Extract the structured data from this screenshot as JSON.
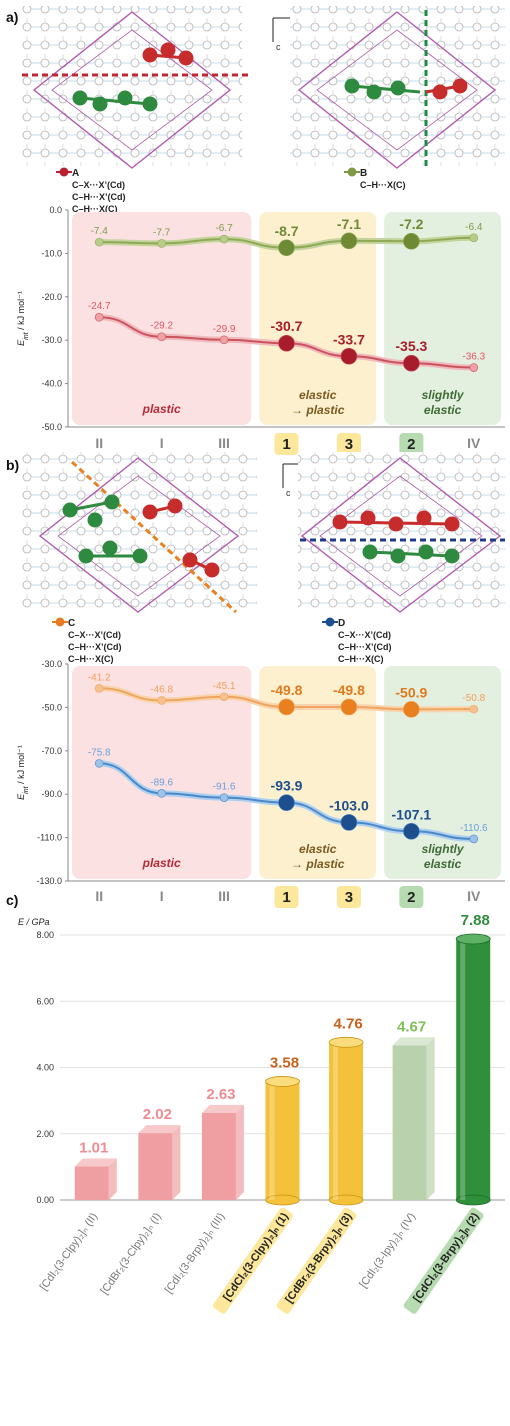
{
  "panels": {
    "a": "a)",
    "b": "b)",
    "c": "c)"
  },
  "axes_orient": {
    "b": "b",
    "c": "c"
  },
  "categories": [
    "II",
    "I",
    "III",
    "1",
    "3",
    "2",
    "IV"
  ],
  "category_highlight": {
    "1": "#fde79a",
    "3": "#fde79a",
    "2": "#b6dbb0"
  },
  "regions": {
    "plastic": "plastic",
    "elastic_line1": "elastic",
    "elastic_line2": "→ plastic",
    "slight_line1": "slightly",
    "slight_line2": "elastic"
  },
  "legend_a": {
    "A": {
      "id": "A",
      "lines": [
        "C–X···X’(Cd)",
        "C–H···X’(Cd)",
        "C–H···X(C)"
      ]
    },
    "B": {
      "id": "B",
      "lines": [
        "C–H···X(C)"
      ]
    }
  },
  "legend_b": {
    "C": {
      "id": "C",
      "lines": [
        "C–X···X’(Cd)",
        "C–H···X’(Cd)",
        "C–H···X(C)"
      ]
    },
    "D": {
      "id": "D",
      "lines": [
        "C–X···X’(Cd)",
        "C–H···X’(Cd)",
        "C–H···X(C)"
      ]
    }
  },
  "colors": {
    "green": "#7f9a46",
    "red": "#b8202f",
    "orange": "#e87a22",
    "blue": "#1c4f8c",
    "plastic_bg": "#fbe1e1",
    "elastic_bg": "#fdf0cf",
    "slight_bg": "#e3efdf",
    "plastic_text": "#b52a37",
    "elastic_text": "#7a5a20",
    "slight_text": "#3e6a36"
  },
  "chart_data": [
    {
      "type": "line",
      "panel": "a",
      "ylabel": "E_int / kJ mol⁻¹",
      "ylim": [
        -50,
        0
      ],
      "yticks": [
        "0.0",
        "-10.0",
        "-20.0",
        "-30.0",
        "-40.0",
        "-50.0"
      ],
      "categories": [
        "II",
        "I",
        "III",
        "1",
        "3",
        "2",
        "IV"
      ],
      "series": [
        {
          "name": "B",
          "values": [
            -7.4,
            -7.7,
            -6.7,
            -8.7,
            -7.1,
            -7.2,
            -6.4
          ],
          "labels": [
            "-7.4",
            "-7.7",
            "-6.7",
            "-8.7",
            "-7.1",
            "-7.2",
            "-6.4"
          ]
        },
        {
          "name": "A",
          "values": [
            -24.7,
            -29.2,
            -29.9,
            -30.7,
            -33.7,
            -35.3,
            -36.3
          ],
          "labels": [
            "-24.7",
            "-29.2",
            "-29.9",
            "-30.7",
            "-33.7",
            "-35.3",
            "-36.3"
          ]
        }
      ]
    },
    {
      "type": "line",
      "panel": "b",
      "ylabel": "E_int / kJ mol⁻¹",
      "ylim": [
        -130,
        -30
      ],
      "yticks": [
        "-30.0",
        "-50.0",
        "-70.0",
        "-90.0",
        "-110.0",
        "-130.0"
      ],
      "categories": [
        "II",
        "I",
        "III",
        "1",
        "3",
        "2",
        "IV"
      ],
      "series": [
        {
          "name": "C",
          "values": [
            -41.2,
            -46.8,
            -45.1,
            -49.8,
            -49.8,
            -50.9,
            -50.8
          ],
          "labels": [
            "-41.2",
            "-46.8",
            "-45.1",
            "-49.8",
            "-49.8",
            "-50.9",
            "-50.8"
          ]
        },
        {
          "name": "D",
          "values": [
            -75.8,
            -89.6,
            -91.6,
            -93.9,
            -103.0,
            -107.1,
            -110.6
          ],
          "labels": [
            "-75.8",
            "-89.6",
            "-91.6",
            "-93.9",
            "-103.0",
            "-107.1",
            "-110.6"
          ]
        }
      ]
    },
    {
      "type": "bar",
      "panel": "c",
      "ylabel": "E / GPa",
      "ylim": [
        0,
        8
      ],
      "yticks": [
        "0.00",
        "2.00",
        "4.00",
        "6.00",
        "8.00"
      ],
      "categories": [
        "[CdI₂(3-Clpy)₂]ₙ (II)",
        "[CdBr₂(3-Clpy)₂]ₙ (I)",
        "[CdI₂(3-Brpy)₂]ₙ (III)",
        "[CdCl₂(3-Clpy)₂]ₙ (1)",
        "[CdBr₂(3-Brpy)₂]ₙ (3)",
        "[CdI₂(3-Ipy)₂]ₙ (IV)",
        "[CdCl₂(3-Brpy)₂]ₙ (2)"
      ],
      "values": [
        1.01,
        2.02,
        2.63,
        3.58,
        4.76,
        4.67,
        7.88
      ],
      "labels": [
        "1.01",
        "2.02",
        "2.63",
        "3.58",
        "4.76",
        "4.67",
        "7.88"
      ]
    }
  ]
}
